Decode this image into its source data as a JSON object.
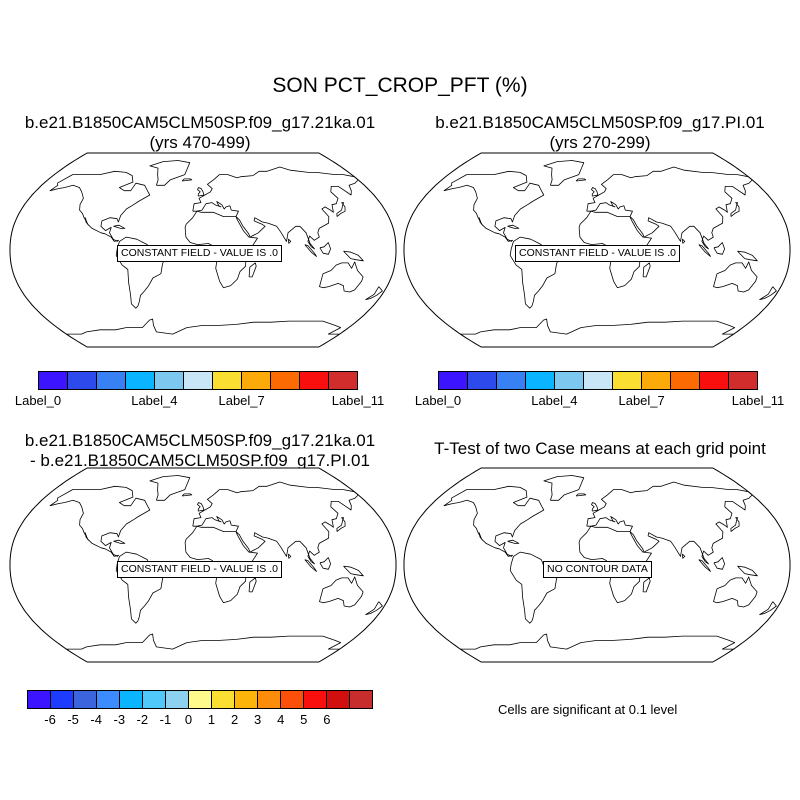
{
  "figure_title": "SON PCT_CROP_PFT (%)",
  "panels": [
    {
      "title_line1": "b.e21.B1850CAM5CLM50SP.f09_g17.21ka.01",
      "title_line2": "(yrs 470-499)",
      "message": "CONSTANT FIELD - VALUE IS .0"
    },
    {
      "title_line1": "b.e21.B1850CAM5CLM50SP.f09_g17.PI.01",
      "title_line2": "(yrs 270-299)",
      "message": "CONSTANT FIELD - VALUE IS .0"
    },
    {
      "title_line1": "b.e21.B1850CAM5CLM50SP.f09_g17.21ka.01",
      "title_line2": "- b.e21.B1850CAM5CLM50SP.f09_g17.PI.01",
      "message": "CONSTANT FIELD - VALUE IS .0"
    },
    {
      "title_line1": "T-Test of two Case means at each grid point",
      "title_line2": "",
      "message": "NO CONTOUR DATA"
    }
  ],
  "colorbar_top": {
    "colors": [
      "#3c14ff",
      "#2d4bec",
      "#3781f5",
      "#0ab4ff",
      "#7dc8ee",
      "#c8e6f5",
      "#fade32",
      "#fcaa0a",
      "#fc6a04",
      "#fa0f0f",
      "#d22d2d"
    ],
    "labels": [
      {
        "text": "Label_0",
        "index": 0
      },
      {
        "text": "Label_4",
        "index": 4
      },
      {
        "text": "Label_7",
        "index": 7
      },
      {
        "text": "Label_11",
        "index": 11
      }
    ]
  },
  "colorbar_diff": {
    "colors": [
      "#3c14ff",
      "#1e3cff",
      "#3c64dc",
      "#3c8cff",
      "#0ab4ff",
      "#50c8fa",
      "#8cd2f0",
      "#fffa8c",
      "#fade32",
      "#fcb40a",
      "#fc8c0a",
      "#fc500a",
      "#fa0f0f",
      "#d20f0f",
      "#c82d2d"
    ],
    "labels": [
      "-6",
      "-5",
      "-4",
      "-3",
      "-2",
      "-1",
      "0",
      "1",
      "2",
      "3",
      "4",
      "5",
      "6"
    ]
  },
  "significance_note": "Cells are significant at 0.1 level"
}
